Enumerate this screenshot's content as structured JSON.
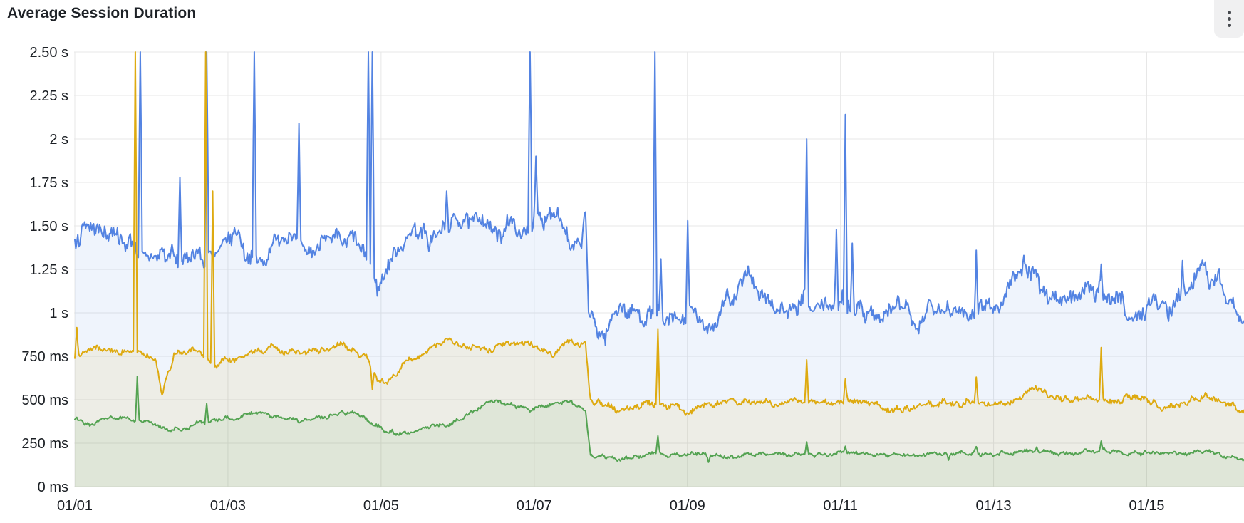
{
  "panel": {
    "title": "Average Session Duration",
    "menu_icon": "kebab-menu"
  },
  "chart_data": {
    "type": "area",
    "title": "Average Session Duration",
    "legend": false,
    "grid": true,
    "style": {
      "grid_color": "#e7e7e7",
      "tick_color": "#1b1f24",
      "background": "#ffffff"
    },
    "x_axis": {
      "unit": "date (MM/DD), day = offset from 01/01",
      "max_day": 15.27,
      "ticks": [
        {
          "day": 0,
          "label": "01/01"
        },
        {
          "day": 2,
          "label": "01/03"
        },
        {
          "day": 4,
          "label": "01/05"
        },
        {
          "day": 6,
          "label": "01/07"
        },
        {
          "day": 8,
          "label": "01/09"
        },
        {
          "day": 10,
          "label": "01/11"
        },
        {
          "day": 12,
          "label": "01/13"
        },
        {
          "day": 14,
          "label": "01/15"
        }
      ]
    },
    "y_axis": {
      "unit": "session duration",
      "min_ms": 0,
      "max_ms": 2500,
      "ticks": [
        {
          "ms": 2500,
          "label": "2.50 s"
        },
        {
          "ms": 2250,
          "label": "2.25 s"
        },
        {
          "ms": 2000,
          "label": "2 s"
        },
        {
          "ms": 1750,
          "label": "1.75 s"
        },
        {
          "ms": 1500,
          "label": "1.50 s"
        },
        {
          "ms": 1250,
          "label": "1.25 s"
        },
        {
          "ms": 1000,
          "label": "1 s"
        },
        {
          "ms": 750,
          "label": "750 ms"
        },
        {
          "ms": 500,
          "label": "500 ms"
        },
        {
          "ms": 250,
          "label": "250 ms"
        },
        {
          "ms": 0,
          "label": "0 ms"
        }
      ]
    },
    "series": [
      {
        "name": "series-blue",
        "color": "#5383E2",
        "fill_opacity": 0.09,
        "seed": 7,
        "noise": {
          "fast": 40,
          "slow": 58
        },
        "baseline": [
          [
            0,
            1460
          ],
          [
            0.3,
            1490
          ],
          [
            0.6,
            1440
          ],
          [
            0.9,
            1340
          ],
          [
            1.2,
            1320
          ],
          [
            1.5,
            1350
          ],
          [
            1.8,
            1300
          ],
          [
            2.1,
            1430
          ],
          [
            2.4,
            1310
          ],
          [
            2.7,
            1450
          ],
          [
            3.0,
            1360
          ],
          [
            3.3,
            1440
          ],
          [
            3.6,
            1430
          ],
          [
            3.85,
            1270
          ],
          [
            3.95,
            1160
          ],
          [
            4.1,
            1250
          ],
          [
            4.4,
            1430
          ],
          [
            4.7,
            1450
          ],
          [
            5.0,
            1500
          ],
          [
            5.3,
            1530
          ],
          [
            5.6,
            1490
          ],
          [
            5.9,
            1470
          ],
          [
            6.1,
            1520
          ],
          [
            6.3,
            1560
          ],
          [
            6.45,
            1400
          ],
          [
            6.55,
            1340
          ],
          [
            6.63,
            1420
          ],
          [
            6.67,
            1600
          ],
          [
            6.71,
            1040
          ],
          [
            6.8,
            950
          ],
          [
            6.93,
            810
          ],
          [
            7.05,
            1000
          ],
          [
            7.3,
            970
          ],
          [
            7.5,
            990
          ],
          [
            7.7,
            950
          ],
          [
            7.9,
            980
          ],
          [
            8.05,
            1020
          ],
          [
            8.25,
            960
          ],
          [
            8.45,
            1010
          ],
          [
            8.65,
            1140
          ],
          [
            8.78,
            1240
          ],
          [
            8.95,
            1100
          ],
          [
            9.15,
            1000
          ],
          [
            9.35,
            1010
          ],
          [
            9.55,
            1080
          ],
          [
            9.75,
            1000
          ],
          [
            9.95,
            1050
          ],
          [
            10.1,
            1060
          ],
          [
            10.3,
            990
          ],
          [
            10.5,
            970
          ],
          [
            10.7,
            1040
          ],
          [
            10.85,
            1000
          ],
          [
            10.98,
            880
          ],
          [
            11.15,
            1010
          ],
          [
            11.35,
            1040
          ],
          [
            11.55,
            980
          ],
          [
            11.75,
            1030
          ],
          [
            11.95,
            1010
          ],
          [
            12.15,
            1110
          ],
          [
            12.35,
            1200
          ],
          [
            12.5,
            1240
          ],
          [
            12.7,
            1100
          ],
          [
            12.9,
            1040
          ],
          [
            13.1,
            1100
          ],
          [
            13.3,
            1140
          ],
          [
            13.5,
            1080
          ],
          [
            13.7,
            1030
          ],
          [
            13.9,
            990
          ],
          [
            14.1,
            1040
          ],
          [
            14.3,
            1010
          ],
          [
            14.5,
            1100
          ],
          [
            14.7,
            1220
          ],
          [
            14.9,
            1230
          ],
          [
            15.05,
            1110
          ],
          [
            15.27,
            930
          ]
        ],
        "spikes": [
          [
            0.85,
            2750
          ],
          [
            1.37,
            1780
          ],
          [
            1.72,
            2750
          ],
          [
            2.35,
            2750
          ],
          [
            2.93,
            2090
          ],
          [
            3.83,
            2750
          ],
          [
            3.89,
            2750
          ],
          [
            4.86,
            1700
          ],
          [
            5.95,
            2750
          ],
          [
            6.02,
            1900
          ],
          [
            7.58,
            2750
          ],
          [
            7.66,
            1310
          ],
          [
            8.0,
            1530
          ],
          [
            9.56,
            2000
          ],
          [
            9.95,
            1480
          ],
          [
            10.06,
            2140
          ],
          [
            10.16,
            1400
          ],
          [
            11.77,
            1360
          ],
          [
            12.39,
            1330
          ],
          [
            13.41,
            1280
          ],
          [
            14.47,
            1300
          ]
        ]
      },
      {
        "name": "series-yellow",
        "color": "#DEAA10",
        "fill_opacity": 0.09,
        "seed": 11,
        "noise": {
          "fast": 13,
          "slow": 20
        },
        "baseline": [
          [
            0,
            745
          ],
          [
            0.3,
            800
          ],
          [
            0.6,
            770
          ],
          [
            0.9,
            775
          ],
          [
            1.05,
            745
          ],
          [
            1.14,
            540
          ],
          [
            1.3,
            770
          ],
          [
            1.6,
            780
          ],
          [
            1.8,
            705
          ],
          [
            2.0,
            725
          ],
          [
            2.3,
            770
          ],
          [
            2.6,
            800
          ],
          [
            2.9,
            770
          ],
          [
            3.2,
            790
          ],
          [
            3.5,
            815
          ],
          [
            3.8,
            755
          ],
          [
            3.95,
            615
          ],
          [
            4.1,
            600
          ],
          [
            4.3,
            720
          ],
          [
            4.6,
            770
          ],
          [
            4.85,
            845
          ],
          [
            5.1,
            810
          ],
          [
            5.4,
            795
          ],
          [
            5.7,
            830
          ],
          [
            6.0,
            800
          ],
          [
            6.25,
            765
          ],
          [
            6.5,
            835
          ],
          [
            6.67,
            820
          ],
          [
            6.73,
            490
          ],
          [
            6.9,
            475
          ],
          [
            7.1,
            440
          ],
          [
            7.3,
            455
          ],
          [
            7.5,
            490
          ],
          [
            7.7,
            470
          ],
          [
            7.9,
            445
          ],
          [
            8.05,
            430
          ],
          [
            8.3,
            475
          ],
          [
            8.6,
            500
          ],
          [
            8.9,
            470
          ],
          [
            9.2,
            480
          ],
          [
            9.45,
            505
          ],
          [
            9.7,
            495
          ],
          [
            9.9,
            480
          ],
          [
            10.2,
            495
          ],
          [
            10.5,
            470
          ],
          [
            10.8,
            440
          ],
          [
            11.1,
            465
          ],
          [
            11.4,
            495
          ],
          [
            11.6,
            480
          ],
          [
            11.9,
            465
          ],
          [
            12.2,
            490
          ],
          [
            12.56,
            560
          ],
          [
            12.8,
            510
          ],
          [
            13.1,
            495
          ],
          [
            13.6,
            505
          ],
          [
            13.9,
            515
          ],
          [
            14.2,
            460
          ],
          [
            14.5,
            485
          ],
          [
            14.8,
            515
          ],
          [
            15.05,
            475
          ],
          [
            15.27,
            430
          ]
        ],
        "spikes": [
          [
            0.02,
            915
          ],
          [
            0.79,
            2750
          ],
          [
            1.14,
            528
          ],
          [
            1.71,
            2550
          ],
          [
            1.8,
            1700
          ],
          [
            3.89,
            560
          ],
          [
            7.61,
            905
          ],
          [
            8.02,
            418
          ],
          [
            9.56,
            730
          ],
          [
            10.06,
            620
          ],
          [
            11.77,
            630
          ],
          [
            13.41,
            800
          ]
        ]
      },
      {
        "name": "series-green",
        "color": "#54A352",
        "fill_opacity": 0.09,
        "seed": 5,
        "noise": {
          "fast": 8,
          "slow": 12
        },
        "baseline": [
          [
            0,
            390
          ],
          [
            0.2,
            355
          ],
          [
            0.4,
            395
          ],
          [
            0.7,
            390
          ],
          [
            0.95,
            375
          ],
          [
            1.15,
            335
          ],
          [
            1.4,
            330
          ],
          [
            1.6,
            365
          ],
          [
            1.85,
            385
          ],
          [
            2.1,
            395
          ],
          [
            2.4,
            425
          ],
          [
            2.7,
            395
          ],
          [
            3.0,
            378
          ],
          [
            3.3,
            405
          ],
          [
            3.6,
            435
          ],
          [
            3.8,
            395
          ],
          [
            4.05,
            320
          ],
          [
            4.3,
            300
          ],
          [
            4.6,
            335
          ],
          [
            4.9,
            365
          ],
          [
            5.15,
            420
          ],
          [
            5.35,
            480
          ],
          [
            5.55,
            495
          ],
          [
            5.75,
            460
          ],
          [
            6.0,
            440
          ],
          [
            6.2,
            475
          ],
          [
            6.4,
            495
          ],
          [
            6.55,
            470
          ],
          [
            6.67,
            445
          ],
          [
            6.73,
            185
          ],
          [
            6.9,
            172
          ],
          [
            7.1,
            160
          ],
          [
            7.35,
            172
          ],
          [
            7.6,
            195
          ],
          [
            7.8,
            180
          ],
          [
            8.05,
            198
          ],
          [
            8.3,
            172
          ],
          [
            8.6,
            180
          ],
          [
            8.9,
            190
          ],
          [
            9.2,
            182
          ],
          [
            9.5,
            188
          ],
          [
            9.8,
            185
          ],
          [
            10.1,
            195
          ],
          [
            10.4,
            188
          ],
          [
            10.7,
            184
          ],
          [
            11.0,
            182
          ],
          [
            11.3,
            192
          ],
          [
            11.6,
            196
          ],
          [
            11.9,
            188
          ],
          [
            12.2,
            194
          ],
          [
            12.5,
            205
          ],
          [
            12.8,
            190
          ],
          [
            13.1,
            196
          ],
          [
            13.4,
            210
          ],
          [
            13.7,
            190
          ],
          [
            14.0,
            196
          ],
          [
            14.3,
            190
          ],
          [
            14.6,
            200
          ],
          [
            14.9,
            192
          ],
          [
            15.1,
            172
          ],
          [
            15.27,
            150
          ]
        ],
        "spikes": [
          [
            0.82,
            635
          ],
          [
            1.72,
            478
          ],
          [
            7.61,
            292
          ],
          [
            8.27,
            140
          ],
          [
            9.56,
            258
          ],
          [
            10.06,
            232
          ],
          [
            11.41,
            152
          ],
          [
            11.77,
            230
          ],
          [
            12.56,
            228
          ],
          [
            13.41,
            262
          ]
        ]
      }
    ]
  }
}
